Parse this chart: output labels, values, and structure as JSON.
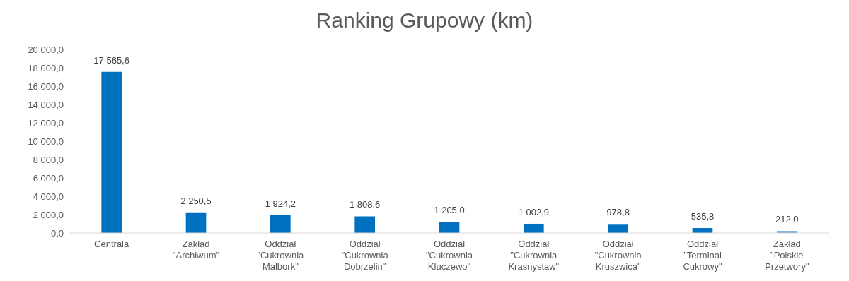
{
  "chart_data": {
    "type": "bar",
    "title": "Ranking Grupowy (km)",
    "categories": [
      "Centrala",
      "Zakład \"Archiwum\"",
      "Oddział \"Cukrownia Malbork\"",
      "Oddział \"Cukrownia Dobrzelin\"",
      "Oddział \"Cukrownia Kluczewo\"",
      "Oddział \"Cukrownia Krasnystaw\"",
      "Oddział \"Cukrownia Kruszwica\"",
      "Oddział \"Terminal Cukrowy\"",
      "Zakład \"Polskie Przetwory\""
    ],
    "values": [
      17565.6,
      2250.5,
      1924.2,
      1808.6,
      1205.0,
      1002.9,
      978.8,
      535.8,
      212.0
    ],
    "value_labels": [
      "17 565,6",
      "2 250,5",
      "1 924,2",
      "1 808,6",
      "1 205,0",
      "1 002,9",
      "978,8",
      "535,8",
      "212,0"
    ],
    "colors": [
      "#0070c0",
      "#0070c0",
      "#0070c0",
      "#0070c0",
      "#0070c0",
      "#0070c0",
      "#0070c0",
      "#0070c0",
      "#5b9bd5"
    ],
    "ylim": [
      0,
      20000
    ],
    "yticks": [
      {
        "value": 0,
        "label": "0,0"
      },
      {
        "value": 2000,
        "label": "2 000,0"
      },
      {
        "value": 4000,
        "label": "4 000,0"
      },
      {
        "value": 6000,
        "label": "6 000,0"
      },
      {
        "value": 8000,
        "label": "8 000,0"
      },
      {
        "value": 10000,
        "label": "10 000,0"
      },
      {
        "value": 12000,
        "label": "12 000,0"
      },
      {
        "value": 14000,
        "label": "14 000,0"
      },
      {
        "value": 16000,
        "label": "16 000,0"
      },
      {
        "value": 18000,
        "label": "18 000,0"
      },
      {
        "value": 20000,
        "label": "20 000,0"
      }
    ],
    "grid": false,
    "legend": false
  }
}
